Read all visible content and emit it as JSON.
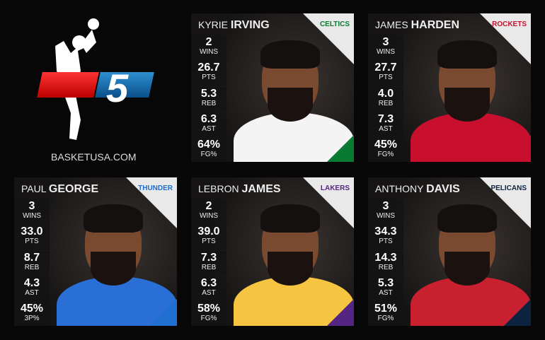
{
  "brand": {
    "logo_number": "5",
    "site": "BASKETUSA.COM"
  },
  "cards": [
    {
      "first": "KYRIE",
      "last": "IRVING",
      "team": "CELTICS",
      "jersey": "#f4f4f4",
      "stripe": "#0a7a32",
      "stats": [
        {
          "v": "2",
          "l": "WINS"
        },
        {
          "v": "26.7",
          "l": "PTS"
        },
        {
          "v": "5.3",
          "l": "REB"
        },
        {
          "v": "6.3",
          "l": "AST"
        },
        {
          "v": "64%",
          "l": "FG%"
        }
      ]
    },
    {
      "first": "JAMES",
      "last": "HARDEN",
      "team": "ROCKETS",
      "jersey": "#c8102e",
      "stripe": "#c8102e",
      "stats": [
        {
          "v": "3",
          "l": "WINS"
        },
        {
          "v": "27.7",
          "l": "PTS"
        },
        {
          "v": "4.0",
          "l": "REB"
        },
        {
          "v": "7.3",
          "l": "AST"
        },
        {
          "v": "45%",
          "l": "FG%"
        }
      ]
    },
    {
      "first": "PAUL",
      "last": "GEORGE",
      "team": "THUNDER",
      "jersey": "#2a6fd6",
      "stripe": "#1e6fd0",
      "stats": [
        {
          "v": "3",
          "l": "WINS"
        },
        {
          "v": "33.0",
          "l": "PTS"
        },
        {
          "v": "8.7",
          "l": "REB"
        },
        {
          "v": "4.3",
          "l": "AST"
        },
        {
          "v": "45%",
          "l": "3P%"
        }
      ]
    },
    {
      "first": "LEBRON",
      "last": "JAMES",
      "team": "LAKERS",
      "jersey": "#f5c542",
      "stripe": "#552583",
      "stats": [
        {
          "v": "2",
          "l": "WINS"
        },
        {
          "v": "39.0",
          "l": "PTS"
        },
        {
          "v": "7.3",
          "l": "REB"
        },
        {
          "v": "6.3",
          "l": "AST"
        },
        {
          "v": "58%",
          "l": "FG%"
        }
      ]
    },
    {
      "first": "ANTHONY",
      "last": "DAVIS",
      "team": "PELICANS",
      "jersey": "#c8202e",
      "stripe": "#0c2340",
      "stats": [
        {
          "v": "3",
          "l": "WINS"
        },
        {
          "v": "34.3",
          "l": "PTS"
        },
        {
          "v": "14.3",
          "l": "REB"
        },
        {
          "v": "5.3",
          "l": "AST"
        },
        {
          "v": "51%",
          "l": "FG%"
        }
      ]
    }
  ]
}
